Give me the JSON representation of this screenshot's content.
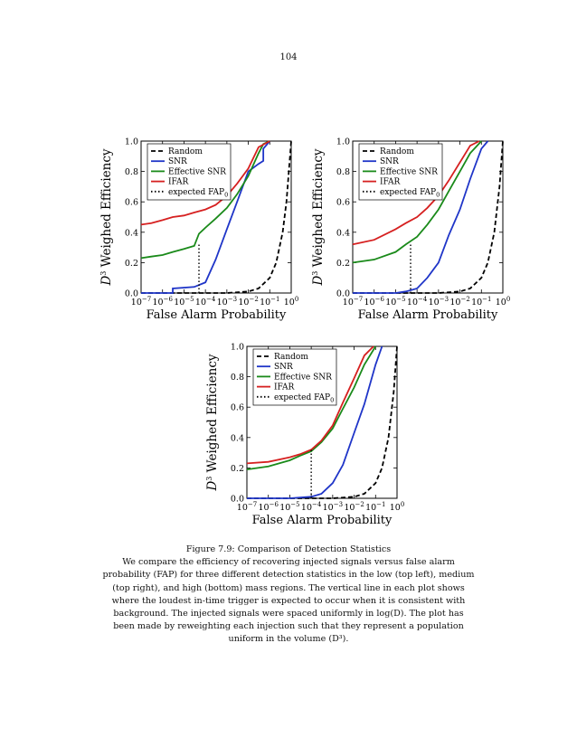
{
  "page": {
    "number": "104"
  },
  "legend_items": [
    {
      "label": "Random",
      "color": "#000000",
      "dash": "5,3"
    },
    {
      "label": "SNR",
      "color": "#1f35c8",
      "dash": ""
    },
    {
      "label": "Effective SNR",
      "color": "#1a8a1a",
      "dash": ""
    },
    {
      "label": "IFAR",
      "color": "#d62020",
      "dash": ""
    },
    {
      "label": "expected FAP",
      "sub": "0",
      "color": "#000000",
      "dash": "1.5,2.5"
    }
  ],
  "ylabel_suffix": " Weighed Efficiency",
  "xlabel": "False Alarm Probability",
  "xtick_exponents": [
    "−7",
    "−6",
    "−5",
    "−4",
    "−3",
    "−2",
    "−1",
    "0"
  ],
  "ytick_labels": [
    "0.0",
    "0.2",
    "0.4",
    "0.6",
    "0.8",
    "1.0"
  ],
  "chart_data": [
    {
      "type": "line",
      "panel": "low mass (top left)",
      "ylabel": "D³ Weighed Efficiency",
      "xlabel": "False Alarm Probability",
      "xscale": "log",
      "xlim": [
        1e-07,
        1
      ],
      "ylim": [
        0,
        1
      ],
      "expected_fap0": 5e-05,
      "series": [
        {
          "name": "Random",
          "x": [
            1e-07,
            1e-06,
            1e-05,
            0.0001,
            0.001,
            0.01,
            0.03,
            0.1,
            0.2,
            0.4,
            0.6,
            1
          ],
          "y": [
            0,
            0,
            0,
            0,
            0,
            0.01,
            0.03,
            0.1,
            0.2,
            0.4,
            0.6,
            1.0
          ]
        },
        {
          "name": "SNR",
          "x": [
            1e-07,
            3e-06,
            3e-06,
            3e-05,
            0.0001,
            0.0003,
            0.001,
            0.003,
            0.01,
            0.03,
            0.05,
            0.05,
            0.1
          ],
          "y": [
            0,
            0,
            0.03,
            0.04,
            0.07,
            0.22,
            0.42,
            0.6,
            0.8,
            0.85,
            0.87,
            0.95,
            1.0
          ]
        },
        {
          "name": "Effective SNR",
          "x": [
            1e-07,
            3e-07,
            1e-06,
            3e-06,
            1e-05,
            3e-05,
            5e-05,
            0.0001,
            0.0003,
            0.001,
            0.003,
            0.01,
            0.03,
            0.05,
            0.1
          ],
          "y": [
            0.23,
            0.24,
            0.25,
            0.27,
            0.29,
            0.31,
            0.39,
            0.43,
            0.49,
            0.56,
            0.65,
            0.77,
            0.92,
            0.98,
            1.0
          ]
        },
        {
          "name": "IFAR",
          "x": [
            1e-07,
            3e-07,
            1e-06,
            3e-06,
            1e-05,
            3e-05,
            0.0001,
            0.0003,
            0.001,
            0.003,
            0.01,
            0.03,
            0.1
          ],
          "y": [
            0.45,
            0.46,
            0.48,
            0.5,
            0.51,
            0.53,
            0.55,
            0.58,
            0.64,
            0.72,
            0.82,
            0.96,
            1.0
          ]
        }
      ]
    },
    {
      "type": "line",
      "panel": "medium mass (top right)",
      "ylabel": "D³ Weighed Efficiency",
      "xlabel": "False Alarm Probability",
      "xscale": "log",
      "xlim": [
        1e-07,
        1
      ],
      "ylim": [
        0,
        1
      ],
      "expected_fap0": 5e-05,
      "series": [
        {
          "name": "Random",
          "x": [
            1e-07,
            1e-05,
            0.0001,
            0.001,
            0.01,
            0.03,
            0.1,
            0.2,
            0.4,
            0.7,
            1
          ],
          "y": [
            0,
            0,
            0,
            0,
            0.01,
            0.03,
            0.1,
            0.2,
            0.4,
            0.7,
            1.0
          ]
        },
        {
          "name": "SNR",
          "x": [
            1e-07,
            1e-05,
            3e-05,
            0.0001,
            0.0003,
            0.001,
            0.003,
            0.01,
            0.03,
            0.1,
            0.2
          ],
          "y": [
            0,
            0,
            0.01,
            0.03,
            0.1,
            0.2,
            0.38,
            0.55,
            0.75,
            0.95,
            1.0
          ]
        },
        {
          "name": "Effective SNR",
          "x": [
            1e-07,
            1e-06,
            1e-05,
            3e-05,
            0.0001,
            0.0003,
            0.001,
            0.003,
            0.01,
            0.03,
            0.1
          ],
          "y": [
            0.2,
            0.22,
            0.27,
            0.32,
            0.37,
            0.45,
            0.55,
            0.67,
            0.8,
            0.92,
            1.0
          ]
        },
        {
          "name": "IFAR",
          "x": [
            1e-07,
            1e-06,
            1e-05,
            3e-05,
            0.0001,
            0.0003,
            0.001,
            0.003,
            0.01,
            0.03,
            0.08
          ],
          "y": [
            0.32,
            0.35,
            0.42,
            0.46,
            0.5,
            0.56,
            0.64,
            0.74,
            0.86,
            0.97,
            1.0
          ]
        }
      ]
    },
    {
      "type": "line",
      "panel": "high mass (bottom)",
      "ylabel": "D³ Weighed Efficiency",
      "xlabel": "False Alarm Probability",
      "xscale": "log",
      "xlim": [
        1e-07,
        1
      ],
      "ylim": [
        0,
        1
      ],
      "expected_fap0": 0.0001,
      "series": [
        {
          "name": "Random",
          "x": [
            1e-07,
            1e-05,
            0.0001,
            0.001,
            0.01,
            0.03,
            0.1,
            0.2,
            0.4,
            0.7,
            1
          ],
          "y": [
            0,
            0,
            0,
            0,
            0.01,
            0.03,
            0.1,
            0.2,
            0.4,
            0.7,
            1.0
          ]
        },
        {
          "name": "SNR",
          "x": [
            1e-07,
            1e-05,
            3e-05,
            0.0001,
            0.0003,
            0.001,
            0.003,
            0.01,
            0.03,
            0.1,
            0.2
          ],
          "y": [
            0,
            0,
            0.005,
            0.01,
            0.03,
            0.1,
            0.22,
            0.43,
            0.62,
            0.88,
            1.0
          ]
        },
        {
          "name": "Effective SNR",
          "x": [
            1e-07,
            1e-06,
            1e-05,
            3e-05,
            0.0001,
            0.0003,
            0.001,
            0.003,
            0.01,
            0.03,
            0.1
          ],
          "y": [
            0.19,
            0.21,
            0.25,
            0.28,
            0.31,
            0.37,
            0.46,
            0.59,
            0.73,
            0.88,
            1.0
          ]
        },
        {
          "name": "IFAR",
          "x": [
            1e-07,
            1e-06,
            1e-05,
            3e-05,
            0.0001,
            0.0003,
            0.001,
            0.003,
            0.01,
            0.03,
            0.08
          ],
          "y": [
            0.23,
            0.24,
            0.27,
            0.29,
            0.32,
            0.38,
            0.48,
            0.63,
            0.79,
            0.94,
            1.0
          ]
        }
      ]
    }
  ],
  "caption": {
    "title": "Figure 7.9: Comparison of Detection Statistics",
    "text": "We compare the efficiency of recovering injected signals versus false alarm probability (FAP) for three different detection statistics in the low (top left), medium (top right), and high (bottom) mass regions. The vertical line in each plot shows where the loudest in-time trigger is expected to occur when it is consistent with background. The injected signals were spaced uniformly in log(D). The plot has been made by reweighting each injection such that they represent a population uniform in the volume (D³)."
  }
}
